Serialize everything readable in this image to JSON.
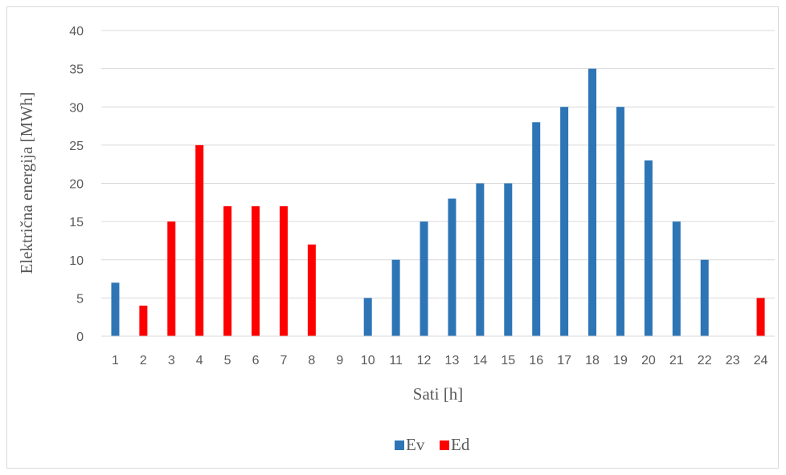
{
  "chart_data": {
    "type": "bar",
    "title": "",
    "xlabel": "Sati [h]",
    "ylabel": "Električna energija [MWh]",
    "ylim": [
      0,
      40
    ],
    "yticks": [
      0,
      5,
      10,
      15,
      20,
      25,
      30,
      35,
      40
    ],
    "grid": "horizontal",
    "legend_position": "bottom",
    "categories": [
      "1",
      "2",
      "3",
      "4",
      "5",
      "6",
      "7",
      "8",
      "9",
      "10",
      "11",
      "12",
      "13",
      "14",
      "15",
      "16",
      "17",
      "18",
      "19",
      "20",
      "21",
      "22",
      "23",
      "24"
    ],
    "series": [
      {
        "name": "Ev",
        "color": "#2e75b6",
        "values": [
          7,
          0,
          0,
          0,
          0,
          0,
          0,
          0,
          0,
          5,
          10,
          15,
          18,
          20,
          20,
          28,
          30,
          35,
          30,
          23,
          15,
          10,
          0,
          0
        ]
      },
      {
        "name": "Ed",
        "color": "#ff0000",
        "values": [
          0,
          4,
          15,
          25,
          17,
          17,
          17,
          12,
          0,
          0,
          0,
          0,
          0,
          0,
          0,
          0,
          0,
          0,
          0,
          0,
          0,
          0,
          0,
          5
        ]
      }
    ]
  }
}
